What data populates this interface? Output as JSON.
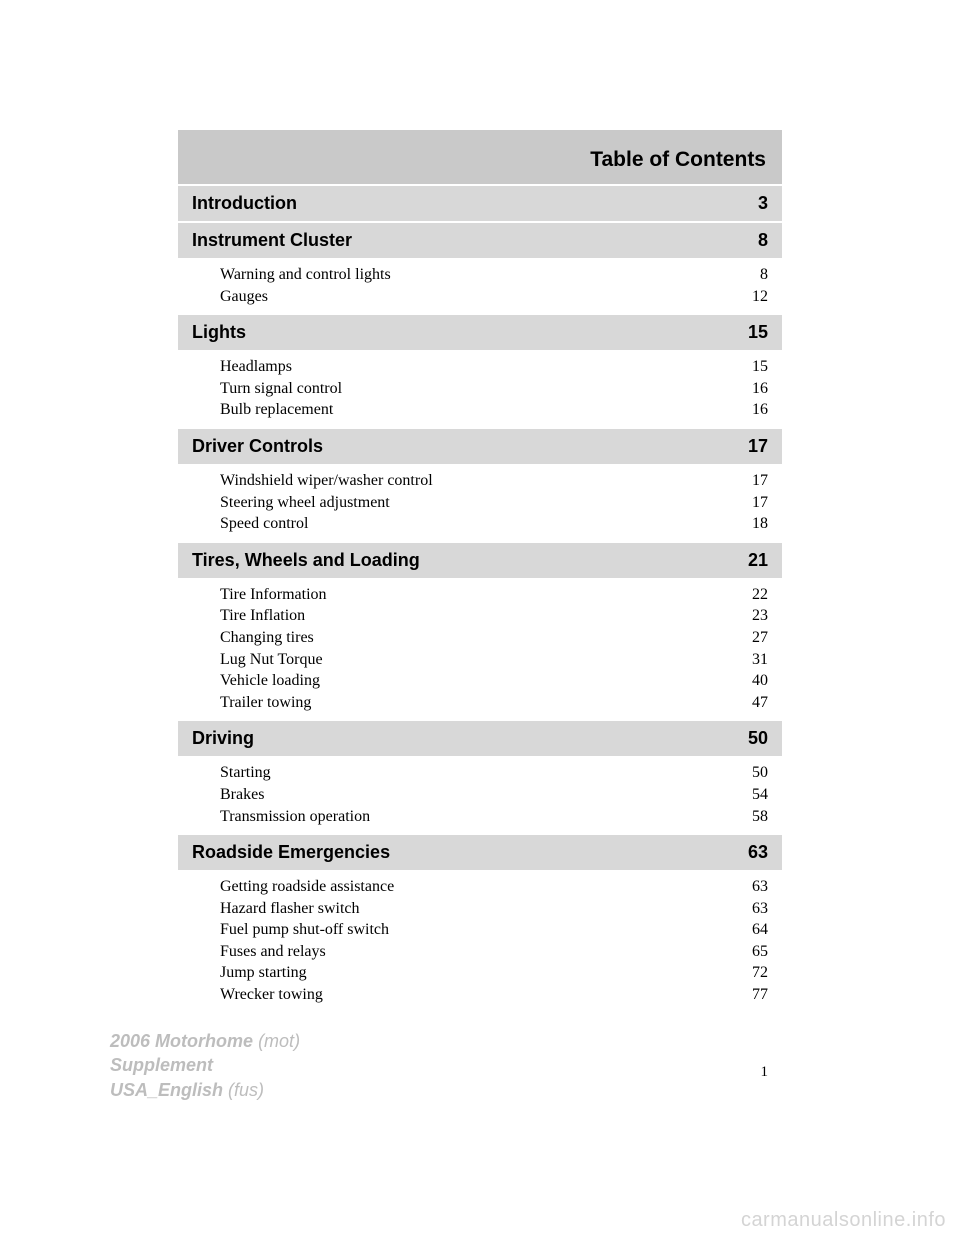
{
  "colors": {
    "header_bg": "#c9c9c9",
    "section_bg": "#d8d8d8",
    "text": "#000000",
    "footer_text": "#bdbdbd",
    "watermark": "#d4d4d4",
    "page_bg": "#ffffff"
  },
  "header": {
    "title": "Table of Contents"
  },
  "sections": [
    {
      "title": "Introduction",
      "page": "3",
      "items": []
    },
    {
      "title": "Instrument Cluster",
      "page": "8",
      "items": [
        {
          "label": "Warning and control lights",
          "page": "8"
        },
        {
          "label": "Gauges",
          "page": "12"
        }
      ]
    },
    {
      "title": "Lights",
      "page": "15",
      "items": [
        {
          "label": "Headlamps",
          "page": "15"
        },
        {
          "label": "Turn signal control",
          "page": "16"
        },
        {
          "label": "Bulb replacement",
          "page": "16"
        }
      ]
    },
    {
      "title": "Driver Controls",
      "page": "17",
      "items": [
        {
          "label": "Windshield wiper/washer control",
          "page": "17"
        },
        {
          "label": "Steering wheel adjustment",
          "page": "17"
        },
        {
          "label": "Speed control",
          "page": "18"
        }
      ]
    },
    {
      "title": "Tires, Wheels and Loading",
      "page": "21",
      "items": [
        {
          "label": "Tire Information",
          "page": "22"
        },
        {
          "label": "Tire Inflation",
          "page": "23"
        },
        {
          "label": "Changing tires",
          "page": "27"
        },
        {
          "label": "Lug Nut Torque",
          "page": "31"
        },
        {
          "label": "Vehicle loading",
          "page": "40"
        },
        {
          "label": "Trailer towing",
          "page": "47"
        }
      ]
    },
    {
      "title": "Driving",
      "page": "50",
      "items": [
        {
          "label": "Starting",
          "page": "50"
        },
        {
          "label": "Brakes",
          "page": "54"
        },
        {
          "label": "Transmission operation",
          "page": "58"
        }
      ]
    },
    {
      "title": "Roadside Emergencies",
      "page": "63",
      "items": [
        {
          "label": "Getting roadside assistance",
          "page": "63"
        },
        {
          "label": "Hazard flasher switch",
          "page": "63"
        },
        {
          "label": "Fuel pump shut-off switch",
          "page": "64"
        },
        {
          "label": "Fuses and relays",
          "page": "65"
        },
        {
          "label": "Jump starting",
          "page": "72"
        },
        {
          "label": "Wrecker towing",
          "page": "77"
        }
      ]
    }
  ],
  "page_number": "1",
  "footer": {
    "line1_bold": "2006 Motorhome",
    "line1_ital": "(mot)",
    "line2_bold": "Supplement",
    "line3_bold": "USA_English",
    "line3_ital": "(fus)"
  },
  "watermark": "carmanualsonline.info"
}
